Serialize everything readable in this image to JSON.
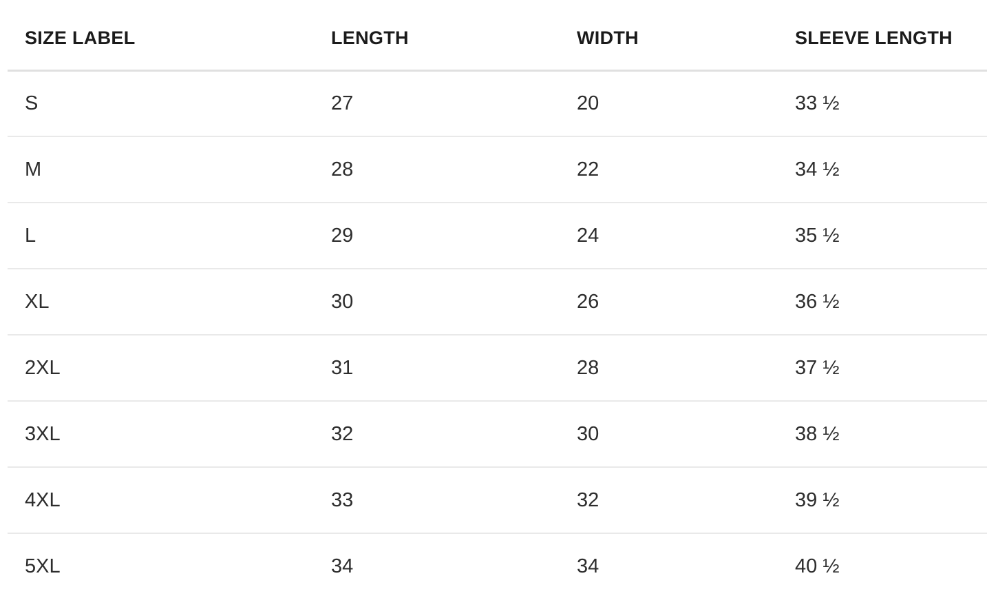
{
  "table": {
    "headers": [
      {
        "label": "SIZE LABEL"
      },
      {
        "label": "LENGTH"
      },
      {
        "label": "WIDTH"
      },
      {
        "label": "SLEEVE LENGTH"
      }
    ],
    "rows": [
      {
        "size_label": "S",
        "length": "27",
        "width": "20",
        "sleeve_length": "33 ½"
      },
      {
        "size_label": "M",
        "length": "28",
        "width": "22",
        "sleeve_length": "34 ½"
      },
      {
        "size_label": "L",
        "length": "29",
        "width": "24",
        "sleeve_length": "35 ½"
      },
      {
        "size_label": "XL",
        "length": "30",
        "width": "26",
        "sleeve_length": "36 ½"
      },
      {
        "size_label": "2XL",
        "length": "31",
        "width": "28",
        "sleeve_length": "37 ½"
      },
      {
        "size_label": "3XL",
        "length": "32",
        "width": "30",
        "sleeve_length": "38 ½"
      },
      {
        "size_label": "4XL",
        "length": "33",
        "width": "32",
        "sleeve_length": "39 ½"
      },
      {
        "size_label": "5XL",
        "length": "34",
        "width": "34",
        "sleeve_length": "40 ½"
      }
    ]
  },
  "colors": {
    "background": "#ffffff",
    "header_text": "#1b1b1b",
    "cell_text": "#2d2d2d",
    "header_divider": "#e0e0e0",
    "row_divider": "#e9e9e9"
  }
}
